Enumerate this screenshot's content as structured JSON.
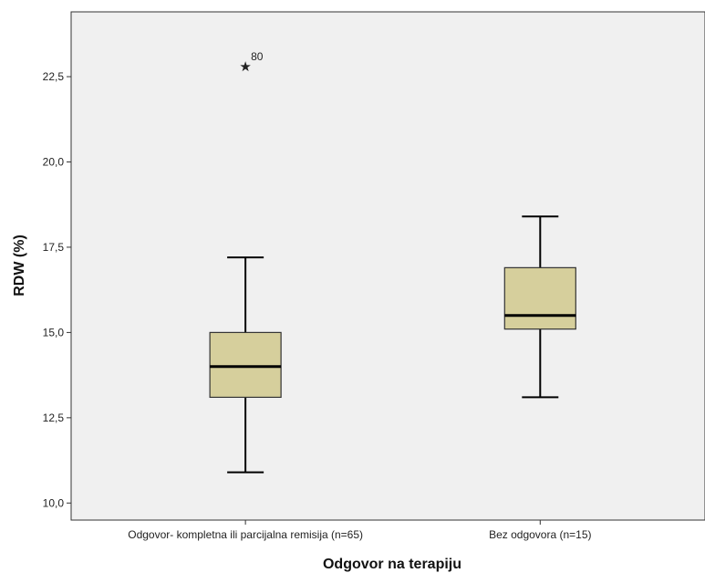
{
  "chart_data": {
    "type": "boxplot",
    "xlabel": "Odgovor na terapiju",
    "ylabel": "RDW (%)",
    "ylim": [
      9.5,
      24.4
    ],
    "yticks": [
      10.0,
      12.5,
      15.0,
      17.5,
      20.0,
      22.5
    ],
    "ytick_labels": [
      "10,0",
      "12,5",
      "15,0",
      "17,5",
      "20,0",
      "22,5"
    ],
    "grid": false,
    "categories": [
      "Odgovor- kompletna ili parcijalna remisija (n=65)",
      "Bez odgovora (n=15)"
    ],
    "boxes": [
      {
        "whisker_low": 10.9,
        "q1": 13.1,
        "median": 14.0,
        "q3": 15.0,
        "whisker_high": 17.2,
        "outliers": [
          {
            "value": 22.8,
            "label": "80",
            "marker": "star"
          }
        ]
      },
      {
        "whisker_low": 13.1,
        "q1": 15.1,
        "median": 15.5,
        "q3": 16.9,
        "whisker_high": 18.4,
        "outliers": []
      }
    ],
    "colors": {
      "plot_background": "#f0f0f0",
      "box_fill": "#d6cf9c",
      "box_stroke": "#333333"
    }
  }
}
